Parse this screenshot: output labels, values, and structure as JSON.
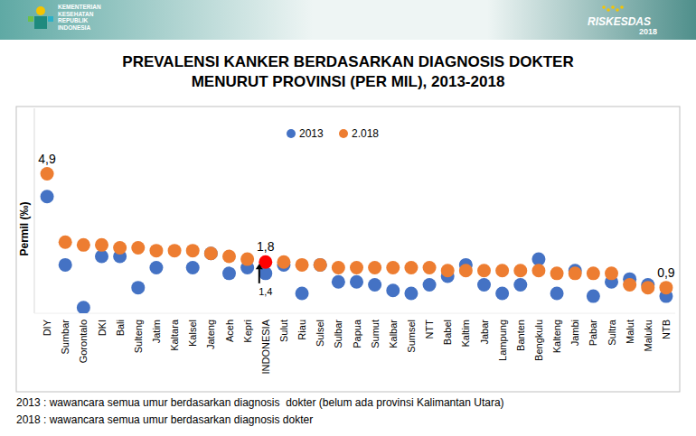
{
  "header": {
    "left_logo": [
      "KEMENTERIAN",
      "KESEHATAN",
      "REPUBLIK",
      "INDONESIA"
    ],
    "right_logo": [
      "RISKESDAS",
      "2018"
    ]
  },
  "chart_data": {
    "type": "scatter",
    "title": [
      "PREVALENSI KANKER BERDASARKAN DIAGNOSIS DOKTER",
      "MENURUT PROVINSI (PER MIL), 2013-2018"
    ],
    "y_label": "Permil (‰)",
    "categories": [
      "DIY",
      "Sumbar",
      "Gorontalo",
      "DKI",
      "Bali",
      "Sulteng",
      "Jatim",
      "Kaltara",
      "Kalsel",
      "Jateng",
      "Aceh",
      "Kepri",
      "INDONESIA",
      "Sulut",
      "Riau",
      "Sulsel",
      "Sulbar",
      "Papua",
      "Sumut",
      "Kalbar",
      "Sumsel",
      "NTT",
      "Babel",
      "Kaltim",
      "Jabar",
      "Lampung",
      "Banten",
      "Bengkulu",
      "Kalteng",
      "Jambi",
      "Pabar",
      "Sultra",
      "Malut",
      "Maluku",
      "NTB"
    ],
    "series": [
      {
        "name": "2013",
        "color": "#4472c4",
        "marker": "circle",
        "values": [
          4.1,
          1.7,
          0.2,
          2.0,
          2.0,
          0.9,
          1.6,
          null,
          1.6,
          2.1,
          1.4,
          1.6,
          1.4,
          1.7,
          0.7,
          1.7,
          1.1,
          1.1,
          1.0,
          0.8,
          0.7,
          1.0,
          1.3,
          1.7,
          1.0,
          0.7,
          1.0,
          1.9,
          0.7,
          1.5,
          0.6,
          1.1,
          1.2,
          1.0,
          0.6
        ]
      },
      {
        "name": "2.018",
        "color": "#ed7d31",
        "marker": "circle",
        "colors": [
          "#ed7d31",
          "#ed7d31",
          "#ed7d31",
          "#ed7d31",
          "#ed7d31",
          "#ed7d31",
          "#ed7d31",
          "#ed7d31",
          "#ed7d31",
          "#ed7d31",
          "#ed7d31",
          "#ed7d31",
          "#ff0000",
          "#ed7d31",
          "#ed7d31",
          "#ed7d31",
          "#ed7d31",
          "#ed7d31",
          "#ed7d31",
          "#ed7d31",
          "#ed7d31",
          "#ed7d31",
          "#ed7d31",
          "#ed7d31",
          "#ed7d31",
          "#ed7d31",
          "#ed7d31",
          "#ed7d31",
          "#ed7d31",
          "#ed7d31",
          "#ed7d31",
          "#ed7d31",
          "#ed7d31",
          "#ed7d31",
          "#ed7d31"
        ],
        "values": [
          4.9,
          2.5,
          2.4,
          2.4,
          2.3,
          2.3,
          2.2,
          2.2,
          2.2,
          2.1,
          2.0,
          1.9,
          1.8,
          1.8,
          1.7,
          1.7,
          1.6,
          1.6,
          1.6,
          1.6,
          1.6,
          1.6,
          1.5,
          1.5,
          1.5,
          1.5,
          1.5,
          1.5,
          1.4,
          1.4,
          1.4,
          1.4,
          1.0,
          0.9,
          0.9
        ]
      }
    ],
    "ylim": [
      0,
      7.2
    ],
    "yticks": [],
    "tick_labels": "x",
    "grid": false,
    "legend": "top",
    "annotations": [
      {
        "text": "4,9",
        "x": "DIY",
        "y": 4.9
      },
      {
        "text": "1,8",
        "x": "INDONESIA",
        "y": 1.8
      },
      {
        "text": "1,4",
        "x": "INDONESIA",
        "y": 1.4
      },
      {
        "text": "0,9",
        "x": "NTB",
        "y": 0.9
      }
    ],
    "notes": [
      "2013 : wawancara semua umur berdasarkan diagnosis  dokter (belum ada provinsi Kalimantan Utara)",
      "2018 : wawancara semua umur berdasarkan diagnosis dokter"
    ]
  }
}
